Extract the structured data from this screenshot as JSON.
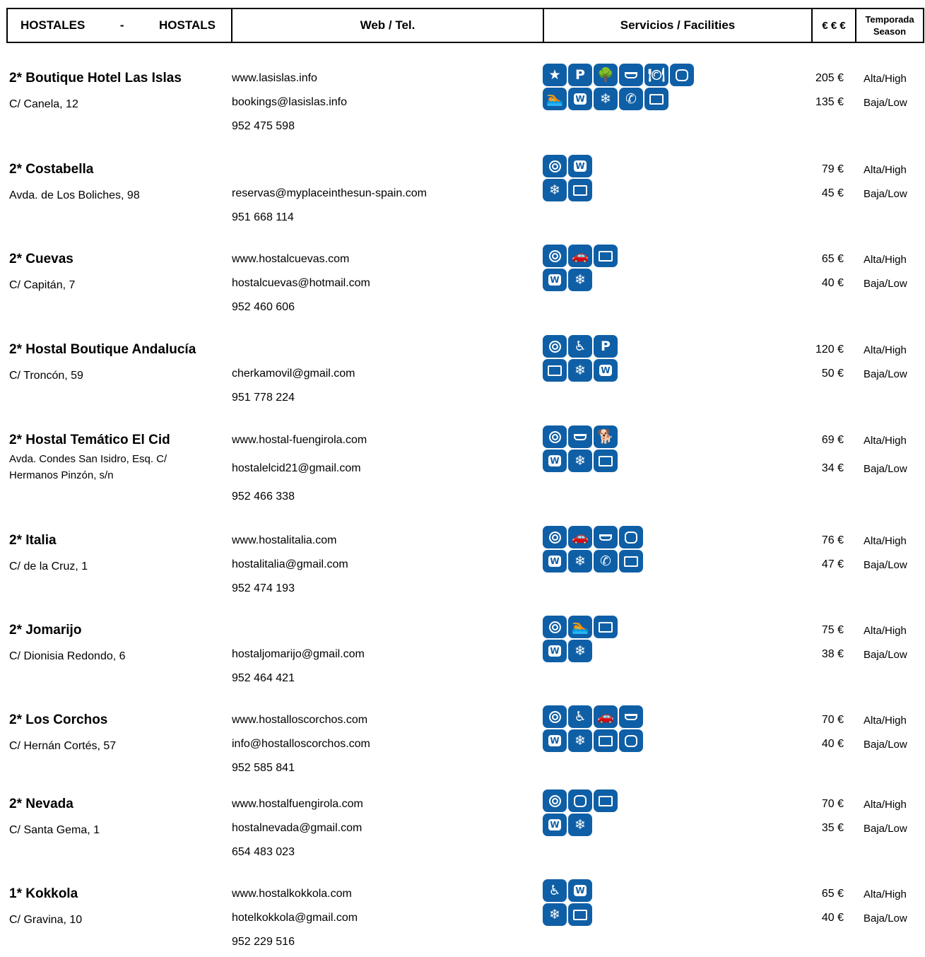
{
  "header": {
    "col1_left": "HOSTALES",
    "col1_dash": "-",
    "col1_right": "HOSTALS",
    "col2": "Web / Tel.",
    "col3": "Servicios / Facilities",
    "col4": "€ € €",
    "col5_line1": "Temporada",
    "col5_line2": "Season"
  },
  "icon_glyphs": {
    "star-icon": "★",
    "parking-icon": "P",
    "garden-icon": "🌳",
    "cafeteria-icon": "",
    "restaurant-icon": "🍽",
    "lift-icon": "",
    "pool-icon": "🏊",
    "wifi-icon": "W",
    "aircon-icon": "❄",
    "telephone-icon": "✆",
    "tv-icon": "",
    "safe-icon": "",
    "garage-icon": "🚗",
    "disabled-access-icon": "♿",
    "pets-icon": "🐕"
  },
  "icon_color": "#0f5fa6",
  "entries": [
    {
      "name": "2* Boutique Hotel Las Islas",
      "address": "C/ Canela, 12",
      "web": "www.lasislas.info",
      "email": "bookings@lasislas.info",
      "phone": "952 475 598",
      "price_high": "205 €",
      "price_low": "135 €",
      "season_high": "Alta/High",
      "season_low": "Baja/Low",
      "icons_row1": [
        "star-icon",
        "parking-icon",
        "garden-icon",
        "cafeteria-icon",
        "restaurant-icon",
        "lift-icon"
      ],
      "icons_row2": [
        "pool-icon",
        "wifi-icon",
        "aircon-icon",
        "telephone-icon",
        "tv-icon"
      ]
    },
    {
      "name": "2* Costabella",
      "address": "Avda. de Los Boliches, 98",
      "web": "",
      "email": "reservas@myplaceinthesun-spain.com",
      "phone": "951 668 114",
      "price_high": "79 €",
      "price_low": "45 €",
      "season_high": "Alta/High",
      "season_low": "Baja/Low",
      "icons_row1": [
        "safe-icon",
        "wifi-icon"
      ],
      "icons_row2": [
        "aircon-icon",
        "tv-icon"
      ]
    },
    {
      "name": "2* Cuevas",
      "address": "C/ Capitán, 7",
      "web": "www.hostalcuevas.com",
      "email": "hostalcuevas@hotmail.com",
      "phone": "952 460 606",
      "price_high": "65 €",
      "price_low": "40 €",
      "season_high": "Alta/High",
      "season_low": "Baja/Low",
      "icons_row1": [
        "safe-icon",
        "garage-icon",
        "tv-icon"
      ],
      "icons_row2": [
        "wifi-icon",
        "aircon-icon"
      ]
    },
    {
      "name": "2* Hostal Boutique Andalucía",
      "address": " C/ Troncón, 59",
      "web": "",
      "email": "cherkamovil@gmail.com",
      "phone": "951 778 224",
      "price_high": "120 €",
      "price_low": "50 €",
      "season_high": "Alta/High",
      "season_low": "Baja/Low",
      "icons_row1": [
        "safe-icon",
        "disabled-access-icon",
        "parking-icon"
      ],
      "icons_row2": [
        "tv-icon",
        "aircon-icon",
        "wifi-icon"
      ]
    },
    {
      "name": "2* Hostal Temático El Cid",
      "address": "Avda. Condes San Isidro, Esq. C/ Hermanos Pinzón, s/n",
      "web": "www.hostal-fuengirola.com",
      "email": "hostalelcid21@gmail.com",
      "phone": "952 466 338",
      "price_high": "69 €",
      "price_low": "34 €",
      "season_high": "Alta/High",
      "season_low": "Baja/Low",
      "icons_row1": [
        "safe-icon",
        "cafeteria-icon",
        "pets-icon"
      ],
      "icons_row2": [
        "wifi-icon",
        "aircon-icon",
        "tv-icon"
      ]
    },
    {
      "name": "2* Italia",
      "address": "C/ de la Cruz, 1",
      "web": "www.hostalitalia.com",
      "email": "hostalitalia@gmail.com",
      "phone": "952 474 193",
      "price_high": "76 €",
      "price_low": "47 €",
      "season_high": "Alta/High",
      "season_low": "Baja/Low",
      "icons_row1": [
        "safe-icon",
        "garage-icon",
        "cafeteria-icon",
        "lift-icon"
      ],
      "icons_row2": [
        "wifi-icon",
        "aircon-icon",
        "telephone-icon",
        "tv-icon"
      ]
    },
    {
      "name": "2* Jomarijo",
      "address": "C/ Dionisia Redondo, 6",
      "web": "",
      "email": "hostaljomarijo@gmail.com",
      "phone": "952 464 421",
      "price_high": "75 €",
      "price_low": "38 €",
      "season_high": "Alta/High",
      "season_low": "Baja/Low",
      "icons_row1": [
        "safe-icon",
        "pool-icon",
        "tv-icon"
      ],
      "icons_row2": [
        "wifi-icon",
        "aircon-icon"
      ]
    },
    {
      "name": "2* Los Corchos",
      "address": "C/ Hernán Cortés, 57",
      "web": "www.hostalloscorchos.com",
      "email": "info@hostalloscorchos.com",
      "phone": "952 585 841",
      "price_high": "70 €",
      "price_low": "40 €",
      "season_high": "Alta/High",
      "season_low": "Baja/Low",
      "icons_row1": [
        "safe-icon",
        "disabled-access-icon",
        "garage-icon",
        "cafeteria-icon"
      ],
      "icons_row2": [
        "wifi-icon",
        "aircon-icon",
        "tv-icon",
        "lift-icon"
      ]
    },
    {
      "name": "2* Nevada",
      "address": "C/ Santa Gema, 1",
      "web": "www.hostalfuengirola.com",
      "email": "hostalnevada@gmail.com",
      "phone": "654 483 023",
      "price_high": "70 €",
      "price_low": "35 €",
      "season_high": "Alta/High",
      "season_low": "Baja/Low",
      "icons_row1": [
        "safe-icon",
        "lift-icon",
        "tv-icon"
      ],
      "icons_row2": [
        "wifi-icon",
        "aircon-icon"
      ]
    },
    {
      "name": "1* Kokkola",
      "address": "C/ Gravina, 10",
      "web": "www.hostalkokkola.com",
      "email": "hotelkokkola@gmail.com",
      "phone": "952 229 516",
      "price_high": "65 €",
      "price_low": "40 €",
      "season_high": "Alta/High",
      "season_low": "Baja/Low",
      "icons_row1": [
        "disabled-access-icon",
        "wifi-icon"
      ],
      "icons_row2": [
        "aircon-icon",
        "tv-icon"
      ]
    }
  ]
}
